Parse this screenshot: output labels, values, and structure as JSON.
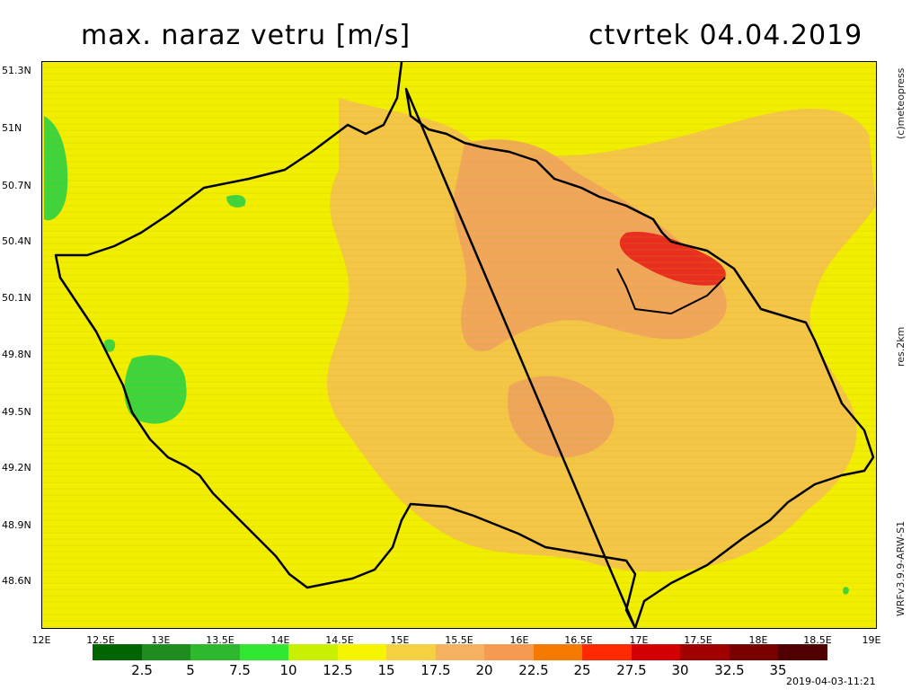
{
  "title": "max. naraz vetru [m/s]",
  "date": "ctvrtek 04.04.2019",
  "copyright": "(c)meteopress",
  "resolution": "res.2km",
  "model": "WRFv3.9.9-ARW-S1",
  "timestamp": "2019-04-03-11:21",
  "lat_labels": [
    "51.3N",
    "51N",
    "50.7N",
    "50.4N",
    "50.1N",
    "49.8N",
    "49.5N",
    "49.2N",
    "48.9N",
    "48.6N"
  ],
  "lon_labels": [
    "12E",
    "12.5E",
    "13E",
    "13.5E",
    "14E",
    "14.5E",
    "15E",
    "15.5E",
    "16E",
    "16.5E",
    "17E",
    "17.5E",
    "18E",
    "18.5E",
    "19E"
  ],
  "legend_labels": [
    "2.5",
    "5",
    "7.5",
    "10",
    "12.5",
    "15",
    "17.5",
    "20",
    "22.5",
    "25",
    "27.5",
    "30",
    "32.5",
    "35"
  ],
  "legend_colors": [
    "#006400",
    "#1e8c1e",
    "#2eb82e",
    "#32e632",
    "#c8f000",
    "#f5f500",
    "#f5d040",
    "#f5b060",
    "#f59a50",
    "#f57a00",
    "#ff2a00",
    "#d20000",
    "#a00000",
    "#780000",
    "#500000"
  ],
  "map": {
    "lon_range": [
      12,
      19
    ],
    "lat_range": [
      48.35,
      51.35
    ],
    "background": "#f2ee00",
    "contour_colors": {
      "green": "#3ed43e",
      "orange": "#f5b060",
      "red": "#e8201a"
    }
  }
}
